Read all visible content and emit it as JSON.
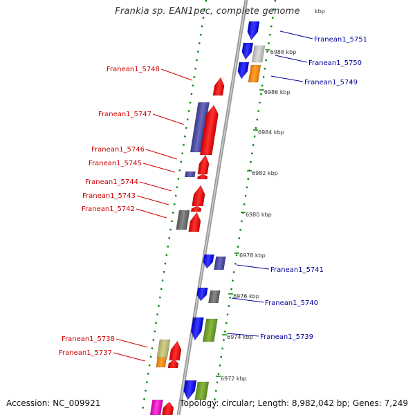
{
  "title": "Frankia sp. EAN1pec, complete genome",
  "footer": {
    "accession": "Accession: NC_009921",
    "summary": "Topology: circular; Length: 8,982,042 bp; Genes: 7,249"
  },
  "colors": {
    "forward": "#ff0000",
    "reverse": "#0000ff",
    "label_forward": "#cc0000",
    "label_reverse": "#000099",
    "tick": "#008000",
    "backbone": "#888888"
  },
  "ticks": [
    "6988 kbp",
    "6986 kbp",
    "6984 kbp",
    "6982 kbp",
    "6980 kbp",
    "6978 kbp",
    "6976 kbp",
    "6974 kbp",
    "6972 kbp"
  ],
  "top_tick_fragment": "kbp",
  "labels_forward": [
    "Franean1_5748",
    "Franean1_5747",
    "Franean1_5746",
    "Franean1_5745",
    "Franean1_5744",
    "Franean1_5743",
    "Franean1_5742",
    "Franean1_5738",
    "Franean1_5737"
  ],
  "labels_reverse": [
    "Franean1_5751",
    "Franean1_5750",
    "Franean1_5749",
    "Franean1_5741",
    "Franean1_5740",
    "Franean1_5739"
  ]
}
